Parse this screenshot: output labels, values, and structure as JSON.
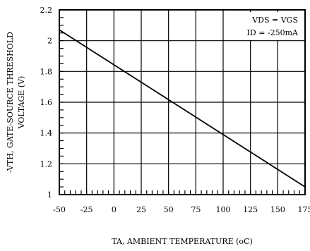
{
  "chart_data": {
    "type": "line",
    "xlabel": "TA, AMBIENT TEMPERATURE (oC)",
    "ylabel_line1": "-VTH, GATE-SOURCE THRESHOLD",
    "ylabel_line2": "VOLTAGE (V)",
    "xlim": [
      -50,
      175
    ],
    "ylim": [
      1,
      2.2
    ],
    "x_ticks": [
      -50,
      -25,
      0,
      25,
      50,
      75,
      100,
      125,
      150,
      175
    ],
    "y_ticks": [
      1,
      1.2,
      1.4,
      1.6,
      1.8,
      2,
      2.2
    ],
    "x_tick_labels": [
      "-50",
      "-25",
      "0",
      "25",
      "50",
      "75",
      "100",
      "125",
      "150",
      "175"
    ],
    "y_tick_labels": [
      "1",
      "1.2",
      "1.4",
      "1.6",
      "1.8",
      "2",
      "2.2"
    ],
    "grid": true,
    "annotations": [
      "VDS = VGS",
      "ID = -250mA"
    ],
    "series": [
      {
        "x": [
          -50,
          175
        ],
        "y": [
          2.07,
          1.05
        ]
      }
    ]
  }
}
